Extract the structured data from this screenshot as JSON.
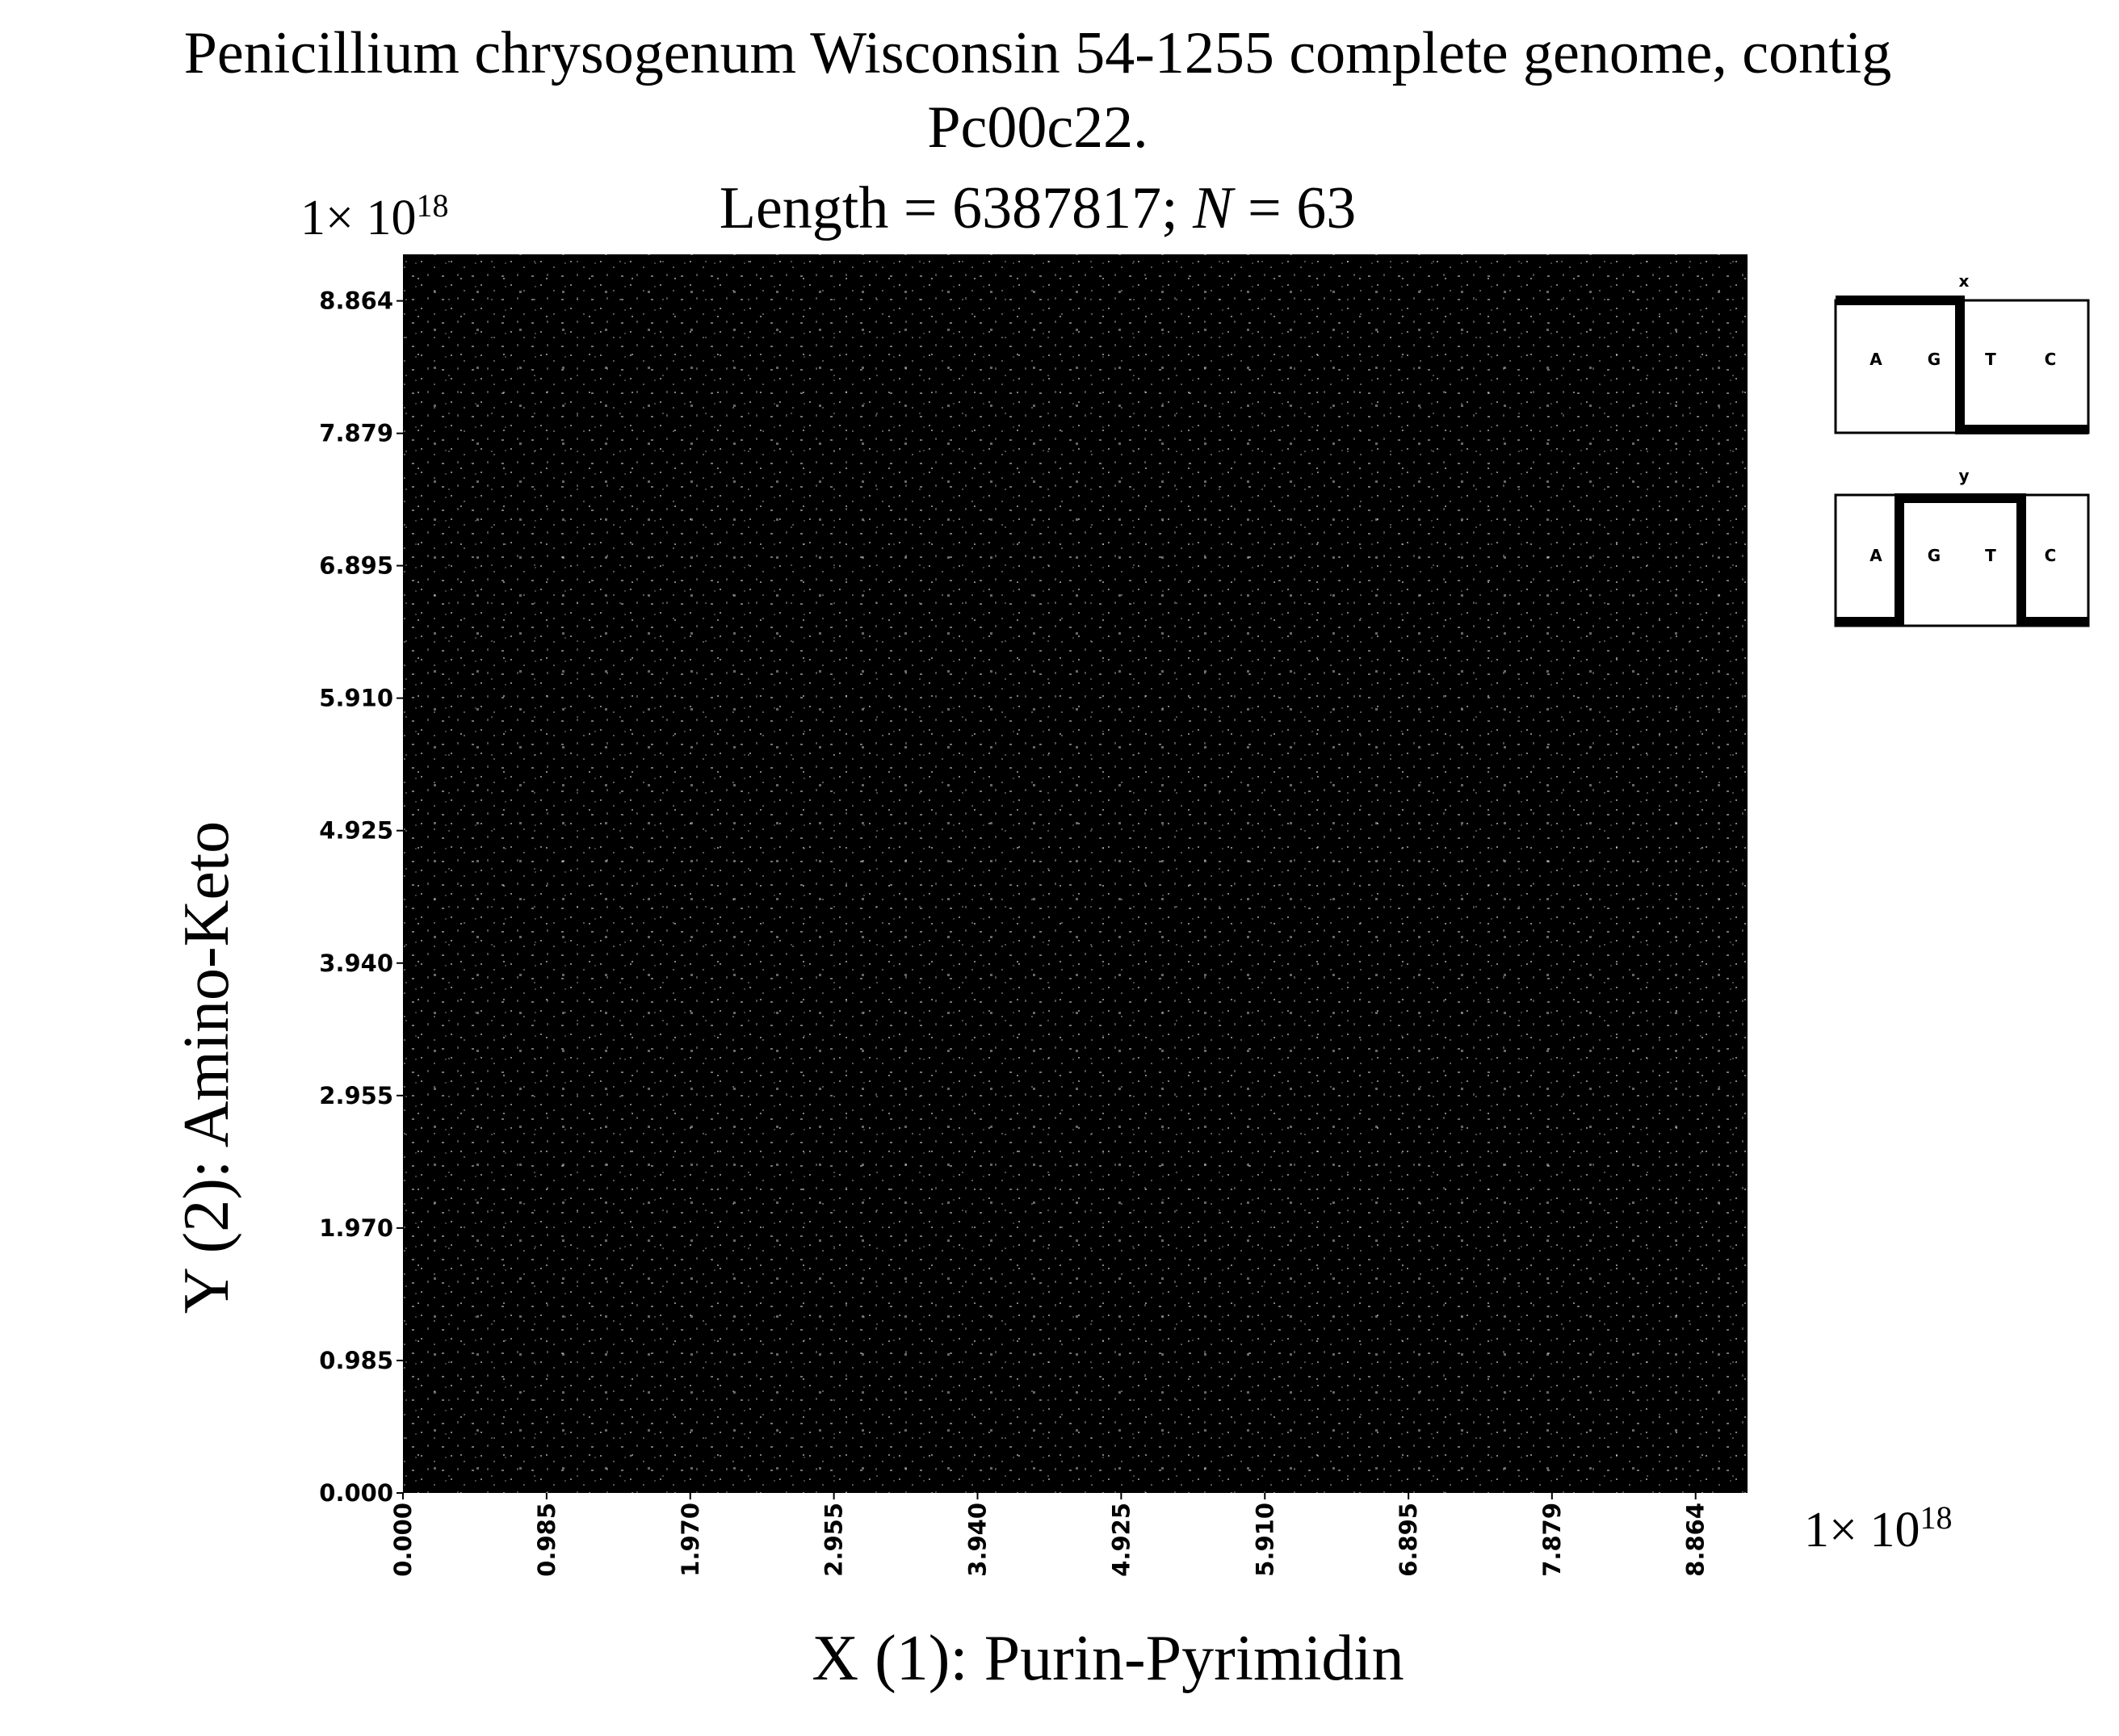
{
  "chart_data": {
    "type": "scatter",
    "title": [
      "Penicillium chrysogenum Wisconsin 54-1255 complete genome, contig",
      "Pc00c22."
    ],
    "subtitle": [
      "Length = 6387817; ",
      "N",
      " = 63"
    ],
    "x_label": "X (1): Purin-Pyrimidin",
    "y_label": "Y (2): Amino-Keto",
    "x_scale_label": [
      "1× 10",
      "18"
    ],
    "y_scale_label": [
      "1× 10",
      "18"
    ],
    "xlim": [
      0,
      9.22
    ],
    "ylim": [
      0,
      9.21
    ],
    "xticks": [
      {
        "value": 0,
        "label": "0.000"
      },
      0.985,
      {
        "value": 1.97,
        "label": "1.970"
      },
      2.955,
      {
        "value": 3.94,
        "label": "3.940"
      },
      4.925,
      {
        "value": 5.91,
        "label": "5.910"
      },
      6.895,
      7.879,
      8.864
    ],
    "yticks": [
      {
        "value": 0,
        "label": "0.000"
      },
      0.985,
      {
        "value": 1.97,
        "label": "1.970"
      },
      2.955,
      {
        "value": 3.94,
        "label": "3.940"
      },
      4.925,
      {
        "value": 5.91,
        "label": "5.910"
      },
      6.895,
      7.879,
      8.864
    ],
    "insets": [
      {
        "label": "x",
        "letters": [
          "A",
          "G",
          "T",
          "C"
        ]
      },
      {
        "label": "y",
        "letters": [
          "A",
          "G",
          "T",
          "C"
        ]
      }
    ]
  }
}
